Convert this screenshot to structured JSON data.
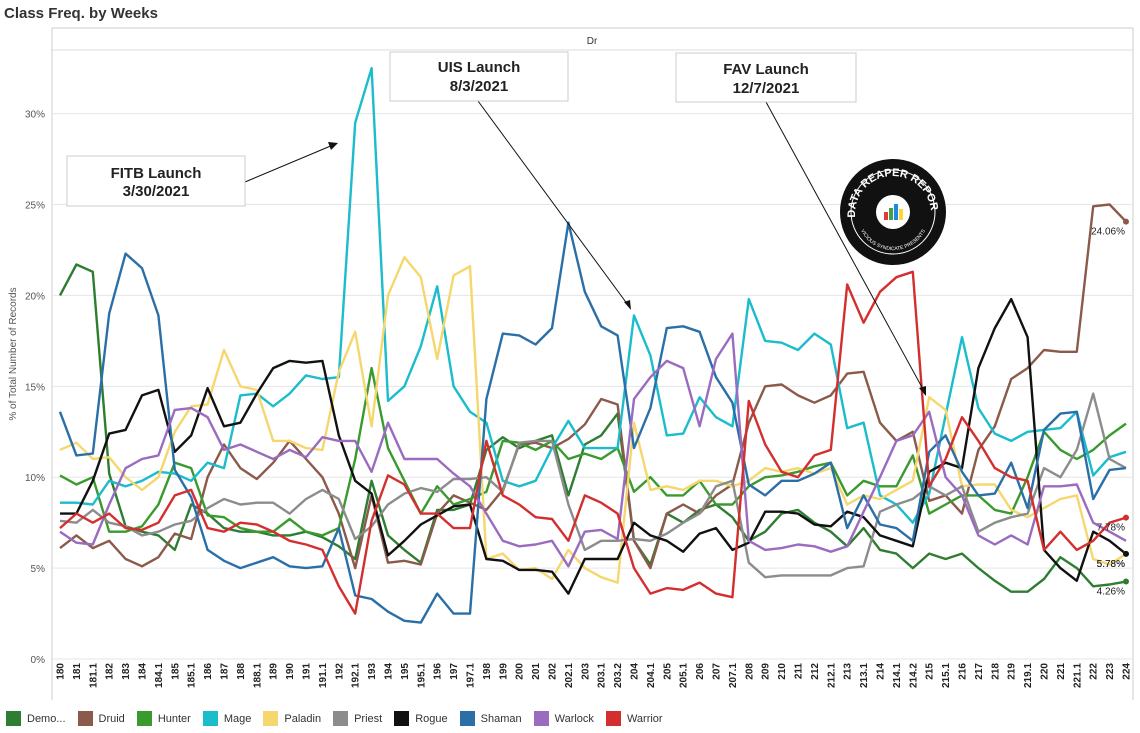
{
  "title": "Class Freq. by Weeks",
  "chart_data": {
    "type": "line",
    "panel_label": "Dr",
    "ylabel": "% of Total Number of Records",
    "ylim": [
      0,
      33.5
    ],
    "yticks": [
      "0%",
      "5%",
      "10%",
      "15%",
      "20%",
      "25%",
      "30%"
    ],
    "ytick_values": [
      0,
      5,
      10,
      15,
      20,
      25,
      30
    ],
    "grid": true,
    "legend_position": "bottom",
    "x": [
      "180",
      "181",
      "181.1",
      "182",
      "183",
      "184",
      "184.1",
      "185",
      "185.1",
      "186",
      "187",
      "188",
      "188.1",
      "189",
      "190",
      "191",
      "191.1",
      "192",
      "192.1",
      "193",
      "194",
      "195",
      "195.1",
      "196",
      "197",
      "197.1",
      "198",
      "199",
      "200",
      "201",
      "202",
      "202.1",
      "203",
      "203.1",
      "203.2",
      "204",
      "204.1",
      "205",
      "205.1",
      "206",
      "207",
      "207.1",
      "208",
      "209",
      "210",
      "211",
      "212",
      "212.1",
      "213",
      "213.1",
      "214",
      "214.1",
      "214.2",
      "215",
      "215.1",
      "216",
      "217",
      "218",
      "219",
      "219.1",
      "220",
      "221",
      "221.1",
      "222",
      "223",
      "224"
    ],
    "series": [
      {
        "name": "Demo...",
        "color": "#2e7d32",
        "values": [
          20.0,
          21.7,
          21.3,
          10.2,
          7.3,
          7.0,
          6.8,
          6.0,
          8.5,
          8.0,
          7.2,
          7.0,
          7.0,
          6.8,
          6.8,
          7.0,
          6.7,
          6.2,
          5.5,
          9.8,
          6.8,
          6.0,
          5.3,
          8.2,
          8.2,
          8.5,
          11.5,
          12.2,
          11.6,
          12.0,
          12.3,
          9.0,
          11.8,
          12.3,
          13.5,
          6.5,
          5.2,
          8.0,
          7.5,
          8.2,
          8.5,
          7.8,
          6.5,
          7.0,
          8.0,
          8.2,
          7.5,
          7.0,
          6.2,
          7.2,
          6.0,
          5.8,
          5.0,
          5.8,
          5.5,
          5.8,
          5.0,
          4.3,
          3.7,
          3.7,
          4.4,
          5.6,
          5.0,
          4.0,
          4.1,
          4.26
        ],
        "end_label": "4.26%"
      },
      {
        "name": "Druid",
        "color": "#8b5a4a",
        "values": [
          6.1,
          6.8,
          6.1,
          6.5,
          5.5,
          5.1,
          5.6,
          6.9,
          6.6,
          10.0,
          11.8,
          10.5,
          9.9,
          10.8,
          12.0,
          11.0,
          10.0,
          8.0,
          5.0,
          9.0,
          5.3,
          5.4,
          5.2,
          8.0,
          9.0,
          8.6,
          8.2,
          9.3,
          11.8,
          11.9,
          11.6,
          12.1,
          12.9,
          14.3,
          14.0,
          6.5,
          5.0,
          8.0,
          8.5,
          8.0,
          9.0,
          9.6,
          13.0,
          15.0,
          15.1,
          14.5,
          14.1,
          14.5,
          15.7,
          15.8,
          13.0,
          12.0,
          12.5,
          8.7,
          9.0,
          8.0,
          11.5,
          12.8,
          15.4,
          16.0,
          17.0,
          16.9,
          16.9,
          24.9,
          25.0,
          24.06
        ],
        "end_label": "24.06%"
      },
      {
        "name": "Hunter",
        "color": "#3a9a2e",
        "values": [
          10.1,
          9.6,
          10.0,
          7.0,
          7.0,
          7.3,
          8.5,
          10.8,
          10.5,
          7.9,
          7.8,
          7.2,
          7.0,
          7.0,
          7.7,
          7.0,
          6.8,
          7.2,
          11.0,
          16.0,
          11.6,
          9.8,
          8.0,
          9.5,
          8.5,
          8.8,
          9.2,
          12.0,
          11.9,
          11.5,
          12.0,
          11.0,
          11.3,
          11.0,
          11.6,
          9.2,
          10.0,
          9.0,
          9.0,
          9.8,
          8.5,
          8.5,
          9.5,
          10.0,
          10.1,
          10.3,
          10.6,
          10.8,
          9.0,
          9.8,
          9.5,
          9.5,
          11.2,
          8.0,
          8.5,
          9.0,
          9.0,
          8.2,
          8.0,
          10.0,
          12.5,
          11.5,
          11.0,
          11.5,
          12.3,
          12.95
        ]
      },
      {
        "name": "Mage",
        "color": "#1bbccc",
        "values": [
          8.6,
          8.6,
          8.5,
          9.8,
          9.5,
          9.8,
          10.3,
          10.2,
          9.8,
          10.8,
          10.5,
          14.5,
          14.6,
          13.9,
          14.6,
          15.6,
          15.4,
          15.5,
          29.5,
          32.5,
          14.2,
          15.0,
          17.2,
          20.5,
          15.0,
          13.6,
          13.0,
          9.8,
          9.5,
          9.8,
          11.6,
          13.1,
          11.6,
          11.6,
          11.6,
          18.9,
          16.7,
          12.3,
          12.4,
          14.4,
          13.3,
          12.8,
          19.8,
          17.5,
          17.4,
          17.0,
          17.9,
          17.3,
          12.7,
          13.0,
          9.0,
          8.5,
          7.5,
          9.1,
          13.4,
          17.7,
          13.8,
          12.4,
          12.0,
          12.5,
          12.6,
          12.7,
          13.6,
          10.1,
          11.1,
          11.4
        ]
      },
      {
        "name": "Paladin",
        "color": "#f5d76e",
        "values": [
          11.5,
          11.9,
          11.0,
          11.1,
          10.0,
          9.3,
          10.0,
          12.5,
          13.9,
          14.0,
          17.0,
          15.0,
          14.8,
          12.0,
          12.0,
          11.6,
          11.5,
          15.8,
          18.0,
          12.8,
          20.0,
          22.1,
          21.0,
          16.5,
          21.1,
          21.6,
          5.5,
          5.8,
          4.9,
          5.0,
          4.4,
          6.0,
          5.0,
          4.5,
          4.2,
          13.0,
          9.3,
          9.5,
          9.3,
          9.8,
          9.8,
          9.5,
          9.8,
          10.5,
          10.3,
          10.5,
          10.2,
          10.5,
          8.5,
          9.0,
          8.8,
          9.3,
          9.8,
          14.4,
          13.7,
          9.5,
          9.6,
          9.6,
          8.2,
          7.8,
          8.3,
          8.8,
          9.0,
          5.5,
          5.2,
          5.78
        ],
        "end_label": "5.78%"
      },
      {
        "name": "Priest",
        "color": "#8c8c8c",
        "values": [
          7.6,
          7.5,
          8.2,
          7.5,
          7.3,
          6.8,
          7.0,
          7.4,
          7.6,
          8.3,
          8.8,
          8.5,
          8.6,
          8.6,
          8.0,
          8.8,
          9.3,
          8.8,
          6.6,
          7.3,
          8.5,
          9.1,
          9.4,
          9.2,
          9.9,
          9.9,
          10.0,
          9.2,
          11.9,
          12.0,
          12.0,
          8.5,
          6.0,
          6.5,
          6.5,
          6.6,
          6.5,
          6.9,
          7.5,
          8.0,
          9.5,
          9.8,
          5.3,
          4.5,
          4.6,
          4.6,
          4.6,
          4.6,
          5.0,
          5.1,
          8.1,
          8.5,
          8.8,
          9.5,
          9.0,
          9.5,
          7.0,
          7.5,
          7.8,
          8.0,
          10.5,
          10.0,
          11.5,
          14.6,
          11.0,
          10.5
        ]
      },
      {
        "name": "Rogue",
        "color": "#111111",
        "values": [
          8.0,
          8.0,
          9.8,
          12.4,
          12.6,
          14.5,
          14.8,
          11.4,
          12.3,
          14.9,
          12.8,
          13.0,
          14.6,
          16.0,
          16.4,
          16.3,
          16.4,
          12.3,
          9.8,
          9.1,
          5.7,
          6.5,
          7.4,
          7.9,
          8.4,
          8.5,
          5.5,
          5.4,
          4.9,
          4.9,
          4.8,
          3.6,
          5.5,
          5.5,
          5.5,
          7.5,
          6.8,
          6.5,
          5.9,
          6.9,
          7.2,
          6.0,
          6.4,
          8.1,
          8.1,
          8.0,
          7.4,
          7.3,
          8.1,
          7.8,
          6.8,
          6.5,
          6.2,
          10.3,
          10.8,
          10.5,
          16.0,
          18.2,
          19.8,
          17.7,
          6.0,
          5.0,
          4.3,
          7.0,
          6.5,
          5.78
        ],
        "end_label": "5.78%"
      },
      {
        "name": "Shaman",
        "color": "#2a6fa8",
        "values": [
          13.6,
          11.2,
          11.3,
          19.0,
          22.3,
          21.5,
          18.9,
          10.4,
          8.9,
          6.0,
          5.4,
          5.0,
          5.3,
          5.6,
          5.1,
          5.0,
          5.1,
          7.2,
          3.5,
          3.3,
          2.6,
          2.1,
          2.0,
          3.6,
          2.5,
          2.5,
          14.3,
          17.9,
          17.8,
          17.3,
          18.2,
          24.0,
          20.2,
          18.3,
          17.8,
          11.6,
          13.8,
          18.2,
          18.3,
          18.0,
          15.5,
          14.1,
          9.6,
          9.0,
          9.8,
          9.8,
          10.2,
          10.8,
          7.2,
          9.0,
          7.4,
          7.2,
          6.5,
          11.4,
          12.3,
          10.3,
          9.0,
          9.1,
          10.8,
          8.3,
          12.6,
          13.5,
          13.6,
          8.8,
          10.4,
          10.5
        ]
      },
      {
        "name": "Warlock",
        "color": "#9b6bc0",
        "values": [
          7.0,
          6.4,
          6.3,
          8.5,
          10.5,
          11.0,
          11.2,
          13.7,
          13.8,
          13.3,
          11.5,
          11.8,
          11.4,
          11.0,
          11.5,
          11.1,
          12.2,
          12.0,
          12.0,
          10.3,
          13.0,
          11.0,
          11.0,
          11.0,
          10.2,
          9.5,
          8.0,
          6.5,
          6.2,
          6.3,
          6.5,
          5.1,
          7.0,
          7.1,
          6.6,
          14.3,
          15.5,
          16.4,
          16.0,
          12.8,
          16.5,
          17.9,
          6.5,
          6.0,
          6.1,
          6.3,
          6.2,
          5.9,
          6.2,
          8.1,
          10.0,
          12.0,
          12.3,
          13.6,
          10.0,
          9.0,
          6.8,
          6.3,
          6.8,
          6.3,
          9.5,
          9.5,
          9.6,
          7.5,
          7.0,
          6.5
        ]
      },
      {
        "name": "Warrior",
        "color": "#d32f2f",
        "values": [
          7.2,
          8.0,
          7.5,
          8.0,
          7.2,
          7.1,
          7.5,
          9.0,
          9.3,
          7.2,
          7.0,
          7.5,
          7.4,
          7.0,
          6.5,
          6.3,
          6.0,
          4.0,
          2.5,
          7.6,
          10.1,
          9.6,
          8.0,
          8.0,
          7.2,
          7.2,
          12.0,
          9.0,
          8.5,
          7.8,
          7.7,
          6.5,
          9.0,
          8.6,
          8.0,
          5.0,
          3.6,
          3.9,
          3.8,
          4.2,
          3.6,
          3.4,
          14.2,
          11.8,
          10.3,
          10.0,
          11.2,
          11.5,
          20.6,
          18.5,
          20.2,
          21.0,
          21.3,
          9.5,
          11.0,
          13.3,
          12.0,
          10.5,
          10.0,
          9.8,
          6.0,
          7.0,
          6.0,
          6.5,
          7.5,
          7.78
        ],
        "end_label": "7.78%"
      }
    ],
    "annotations": [
      {
        "line1": "FITB Launch",
        "line2": "3/30/2021"
      },
      {
        "line1": "UIS Launch",
        "line2": "8/3/2021"
      },
      {
        "line1": "FAV Launch",
        "line2": "12/7/2021"
      }
    ]
  },
  "legend": {
    "items": [
      {
        "label": "Demo...",
        "color": "#2e7d32"
      },
      {
        "label": "Druid",
        "color": "#8b5a4a"
      },
      {
        "label": "Hunter",
        "color": "#3a9a2e"
      },
      {
        "label": "Mage",
        "color": "#1bbccc"
      },
      {
        "label": "Paladin",
        "color": "#f5d76e"
      },
      {
        "label": "Priest",
        "color": "#8c8c8c"
      },
      {
        "label": "Rogue",
        "color": "#111111"
      },
      {
        "label": "Shaman",
        "color": "#2a6fa8"
      },
      {
        "label": "Warlock",
        "color": "#9b6bc0"
      },
      {
        "label": "Warrior",
        "color": "#d32f2f"
      }
    ]
  },
  "logo": {
    "text": "DATA REAPER REPORT",
    "subtext": "VICIOUS SYNDICATE PRESENTS",
    "icon": "bar-chart-icon"
  }
}
